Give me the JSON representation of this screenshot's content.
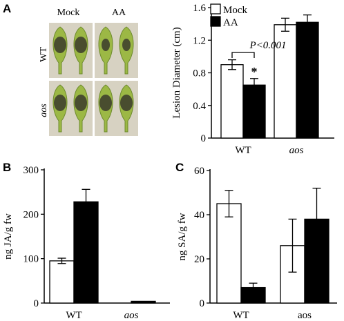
{
  "panel_labels": {
    "a": "A",
    "b": "B",
    "c": "C"
  },
  "photo_grid": {
    "column_labels": [
      "Mock",
      "AA"
    ],
    "row_labels": [
      "WT",
      "aos"
    ],
    "tissue_color": "#9cb845",
    "lesion_color": "#3b3a2c"
  },
  "chart_data": [
    {
      "id": "A",
      "type": "bar",
      "ylabel": "Lesion Diameter (cm)",
      "ylim": [
        0,
        1.6
      ],
      "yticks": [
        "0",
        "0.4",
        "0.8",
        "1.2",
        "1.6"
      ],
      "categories": [
        "WT",
        "aos"
      ],
      "series": [
        {
          "name": "Mock",
          "color": "#ffffff",
          "values": [
            0.9,
            1.39
          ],
          "errors": [
            0.06,
            0.08
          ]
        },
        {
          "name": "AA",
          "color": "#000000",
          "values": [
            0.65,
            1.42
          ],
          "errors": [
            0.08,
            0.09
          ]
        }
      ],
      "legend_position": "top-left",
      "annotation": {
        "pvalue": "P<0.001",
        "star": "*"
      }
    },
    {
      "id": "B",
      "type": "bar",
      "ylabel": "ng JA/g fw",
      "ylim": [
        0,
        300
      ],
      "yticks": [
        "0",
        "100",
        "200",
        "300"
      ],
      "categories": [
        "WT",
        "aos"
      ],
      "series": [
        {
          "name": "",
          "color": "#ffffff",
          "values": [
            95,
            0
          ],
          "errors": [
            6,
            0
          ]
        },
        {
          "name": "",
          "color": "#000000",
          "values": [
            228,
            4
          ],
          "errors": [
            28,
            0
          ]
        }
      ]
    },
    {
      "id": "C",
      "type": "bar",
      "ylabel": "ng SA/g fw",
      "ylim": [
        0,
        60
      ],
      "yticks": [
        "0",
        "20",
        "40",
        "60"
      ],
      "categories": [
        "WT",
        "aos"
      ],
      "series": [
        {
          "name": "",
          "color": "#ffffff",
          "values": [
            45,
            26
          ],
          "errors": [
            6,
            12
          ]
        },
        {
          "name": "",
          "color": "#000000",
          "values": [
            7,
            38
          ],
          "errors": [
            2,
            14
          ]
        }
      ]
    }
  ]
}
